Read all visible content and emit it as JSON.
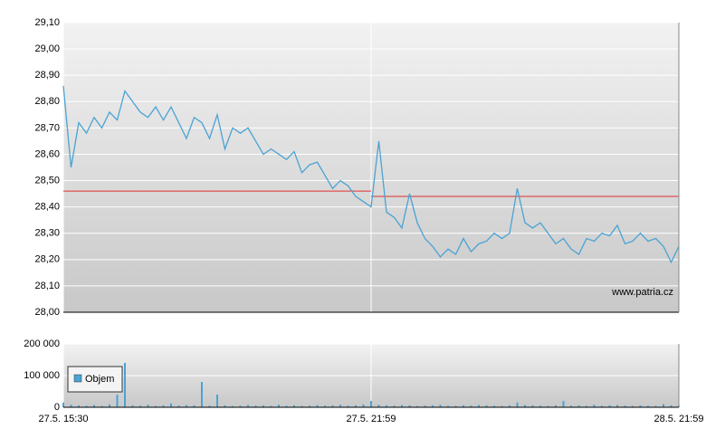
{
  "chart_data": [
    {
      "type": "line",
      "categories": [
        "27.5. 15:30",
        null,
        null,
        null,
        null,
        null,
        null,
        null,
        null,
        null,
        null,
        null,
        null,
        null,
        null,
        null,
        null,
        null,
        null,
        null,
        null,
        null,
        null,
        null,
        null,
        null,
        null,
        null,
        null,
        null,
        null,
        null,
        null,
        null,
        null,
        null,
        null,
        null,
        null,
        null,
        "27.5. 21:59",
        null,
        null,
        null,
        null,
        null,
        null,
        null,
        null,
        null,
        null,
        null,
        null,
        null,
        null,
        null,
        null,
        null,
        null,
        null,
        null,
        null,
        null,
        null,
        null,
        null,
        null,
        null,
        null,
        null,
        null,
        null,
        null,
        null,
        null,
        null,
        null,
        null,
        null,
        null,
        "28.5. 21:59"
      ],
      "series": [
        {
          "color": "#4aa3d4",
          "values": [
            28.86,
            28.55,
            28.72,
            28.68,
            28.74,
            28.7,
            28.76,
            28.73,
            28.84,
            28.8,
            28.76,
            28.74,
            28.78,
            28.73,
            28.78,
            28.72,
            28.66,
            28.74,
            28.72,
            28.66,
            28.75,
            28.62,
            28.7,
            28.68,
            28.7,
            28.65,
            28.6,
            28.62,
            28.6,
            28.58,
            28.61,
            28.53,
            28.56,
            28.57,
            28.52,
            28.47,
            28.5,
            28.48,
            28.44,
            28.42,
            28.4,
            28.65,
            28.38,
            28.36,
            28.32,
            28.45,
            28.34,
            28.28,
            28.25,
            28.21,
            28.24,
            28.22,
            28.28,
            28.23,
            28.26,
            28.27,
            28.3,
            28.28,
            28.3,
            28.47,
            28.34,
            28.32,
            28.34,
            28.3,
            28.26,
            28.28,
            28.24,
            28.22,
            28.28,
            28.27,
            28.3,
            28.29,
            28.33,
            28.26,
            28.27,
            28.3,
            28.27,
            28.28,
            28.25,
            28.19,
            28.25
          ]
        }
      ],
      "reference_lines": [
        {
          "color": "#e03030",
          "value": 28.46,
          "from": 0,
          "to": 40
        },
        {
          "color": "#e03030",
          "value": 28.44,
          "from": 40,
          "to": 80
        }
      ],
      "ylim": [
        28.0,
        29.1
      ],
      "yticks": [
        {
          "value": 28.0,
          "label": "28,00"
        },
        {
          "value": 28.1,
          "label": "28,10"
        },
        {
          "value": 28.2,
          "label": "28,20"
        },
        {
          "value": 28.3,
          "label": "28,30"
        },
        {
          "value": 28.4,
          "label": "28,40"
        },
        {
          "value": 28.5,
          "label": "28,50"
        },
        {
          "value": 28.6,
          "label": "28,60"
        },
        {
          "value": 28.7,
          "label": "28,70"
        },
        {
          "value": 28.8,
          "label": "28,80"
        },
        {
          "value": 28.9,
          "label": "28,90"
        },
        {
          "value": 29.0,
          "label": "29,00"
        },
        {
          "value": 29.1,
          "label": "29,10"
        }
      ],
      "grid": true,
      "annotation": "www.patria.cz"
    },
    {
      "type": "bar",
      "series": [
        {
          "name": "Objem",
          "color": "#4aa3d4",
          "values": [
            15000,
            8000,
            6000,
            5000,
            7000,
            4000,
            9000,
            40000,
            140000,
            6000,
            5000,
            8000,
            4000,
            6000,
            12000,
            5000,
            7000,
            6000,
            80000,
            5000,
            40000,
            6000,
            4000,
            5000,
            7000,
            5000,
            6000,
            4000,
            8000,
            5000,
            6000,
            4000,
            5000,
            7000,
            5000,
            6000,
            8000,
            5000,
            6000,
            9000,
            20000,
            8000,
            6000,
            5000,
            7000,
            6000,
            4000,
            5000,
            6000,
            8000,
            5000,
            4000,
            6000,
            5000,
            7000,
            6000,
            5000,
            4000,
            6000,
            15000,
            7000,
            6000,
            5000,
            4000,
            6000,
            20000,
            5000,
            6000,
            4000,
            8000,
            5000,
            6000,
            7000,
            5000,
            4000,
            6000,
            5000,
            4000,
            10000,
            6000,
            5000
          ]
        }
      ],
      "ylim": [
        0,
        200000
      ],
      "yticks": [
        0,
        {
          "value": 100000,
          "label": "100 000"
        },
        {
          "value": 200000,
          "label": "200 000"
        }
      ],
      "grid": true
    }
  ]
}
